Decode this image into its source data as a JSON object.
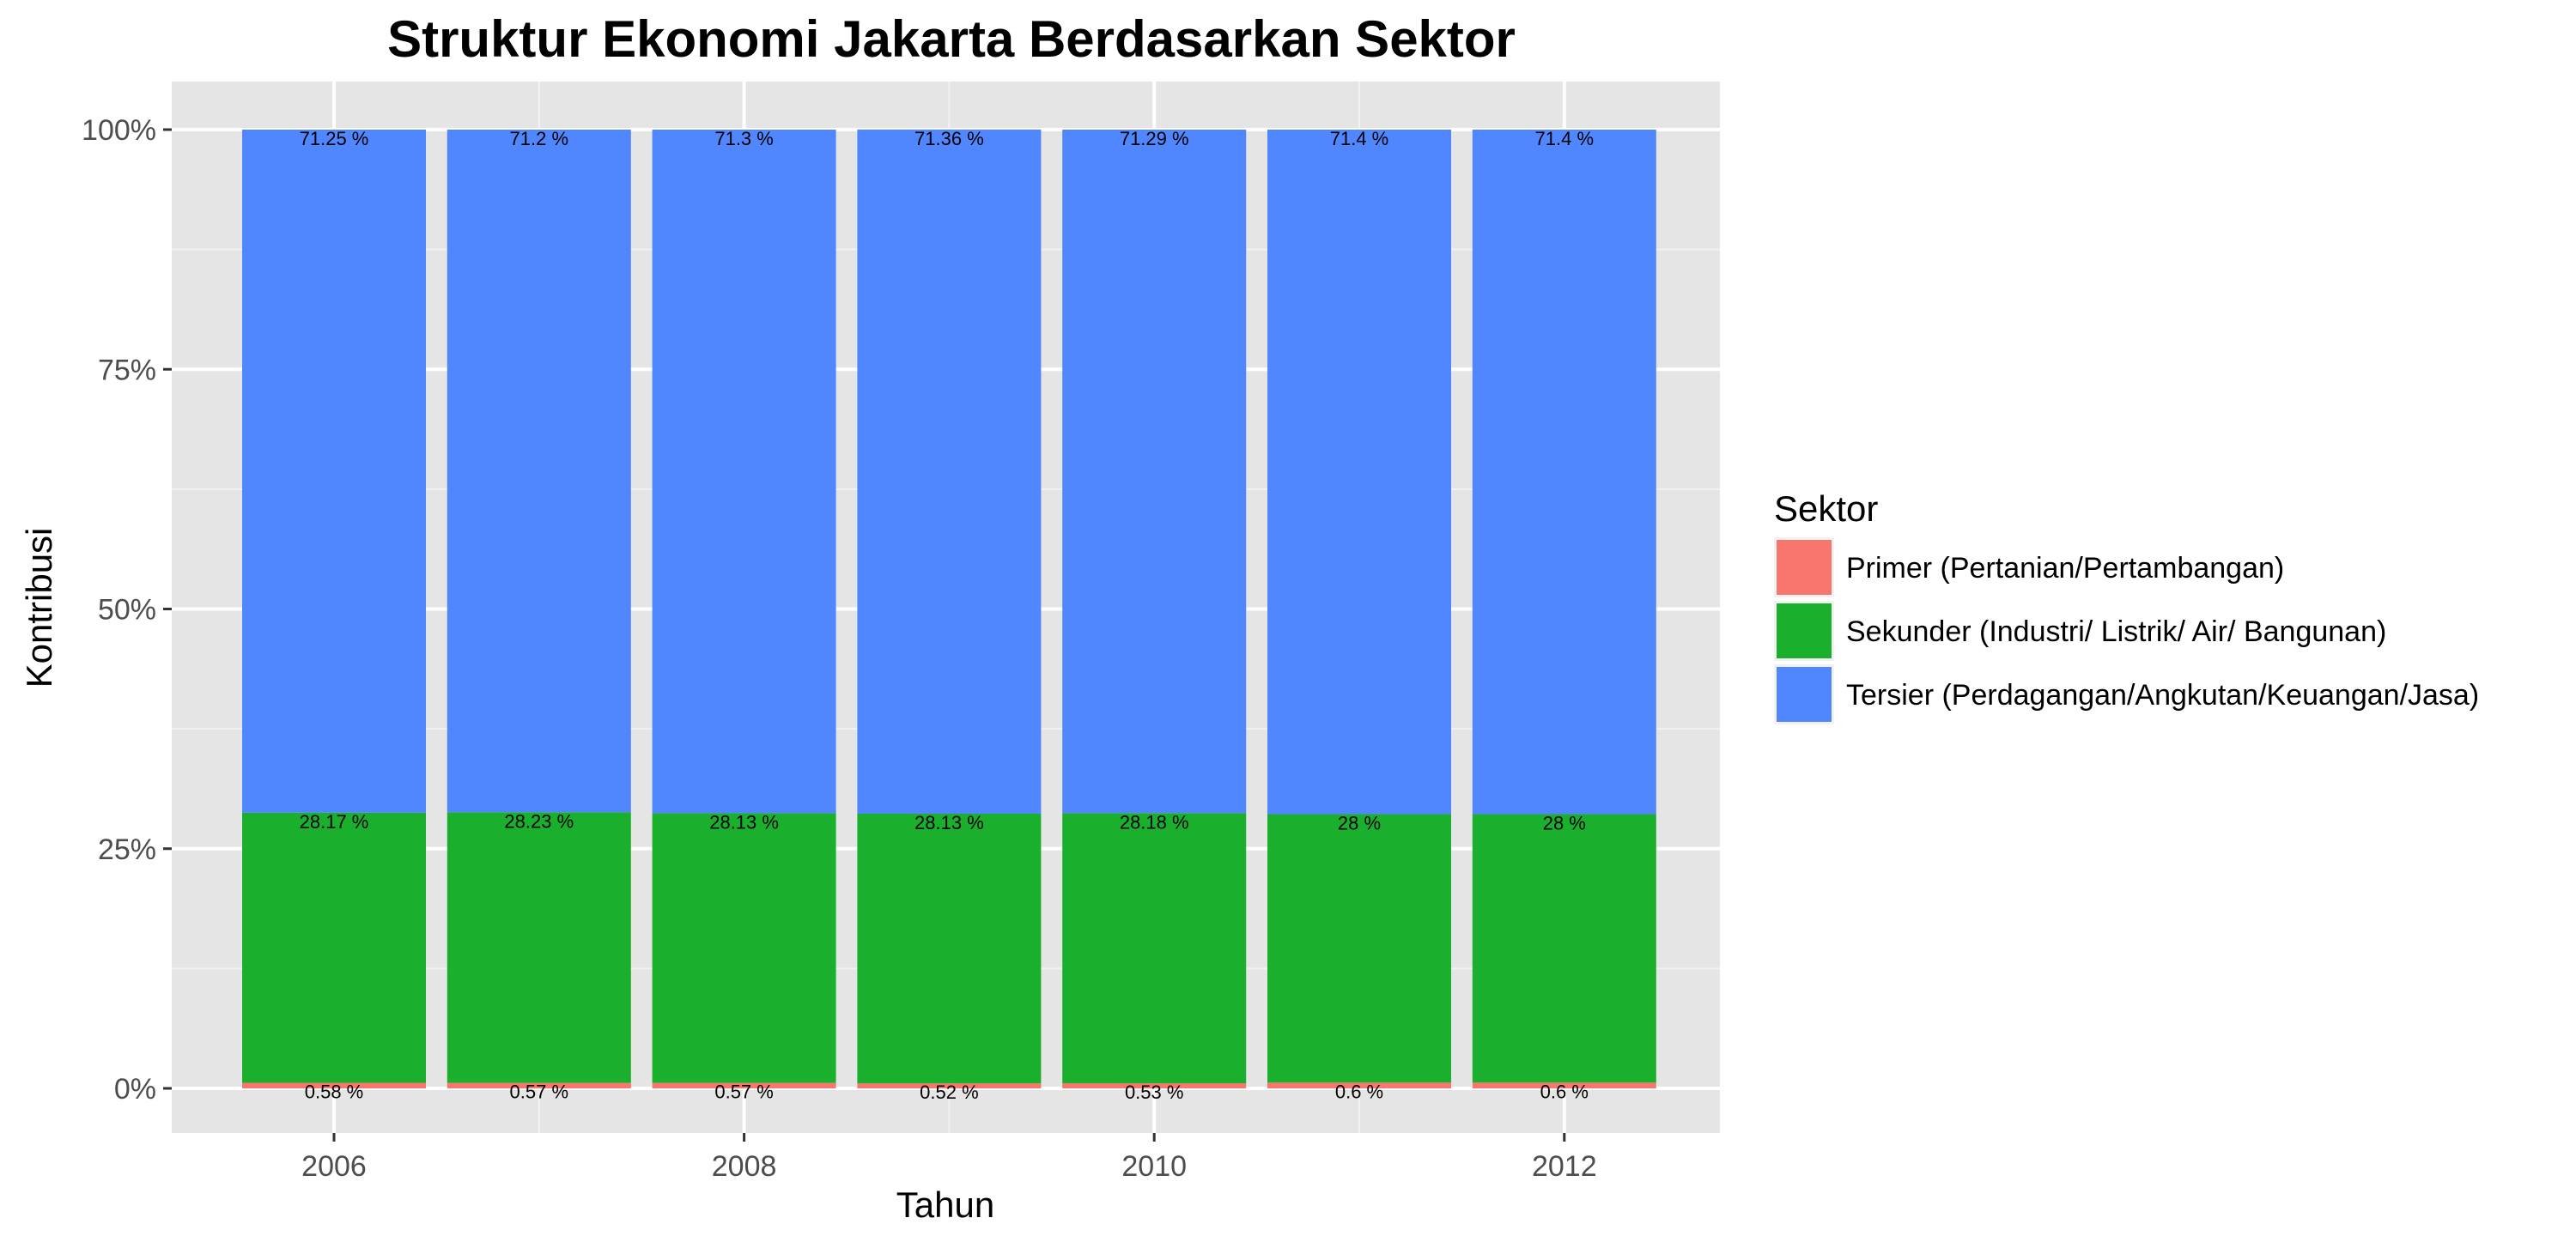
{
  "chart_data": {
    "type": "bar",
    "stacked": true,
    "title": "Struktur Ekonomi Jakarta Berdasarkan Sektor",
    "xlabel": "Tahun",
    "ylabel": "Kontribusi",
    "x": [
      2006,
      2007,
      2008,
      2009,
      2010,
      2011,
      2012
    ],
    "x_tick_labels": [
      "2006",
      "2008",
      "2010",
      "2012"
    ],
    "y_tick_labels": [
      "0%",
      "25%",
      "50%",
      "75%",
      "100%"
    ],
    "ylim": [
      0,
      100
    ],
    "grid": true,
    "legend_position": "right",
    "legend_title": "Sektor",
    "series": [
      {
        "name": "Primer (Pertanian/Pertambangan)",
        "color": "#F8766D",
        "values": [
          0.58,
          0.57,
          0.57,
          0.52,
          0.53,
          0.6,
          0.6
        ],
        "labels": [
          "0.58 %",
          "0.57 %",
          "0.57 %",
          "0.52 %",
          "0.53 %",
          "0.6 %",
          "0.6 %"
        ]
      },
      {
        "name": "Sekunder (Industri/ Listrik/ Air/ Bangunan)",
        "color": "#1AB02E",
        "values": [
          28.17,
          28.23,
          28.13,
          28.13,
          28.18,
          28,
          28
        ],
        "labels": [
          "28.17 %",
          "28.23 %",
          "28.13 %",
          "28.13 %",
          "28.18 %",
          "28 %",
          "28 %"
        ]
      },
      {
        "name": "Tersier (Perdagangan/Angkutan/Keuangan/Jasa)",
        "color": "#5087FF",
        "values": [
          71.25,
          71.2,
          71.3,
          71.36,
          71.29,
          71.4,
          71.4
        ],
        "labels": [
          "71.25 %",
          "71.2 %",
          "71.3 %",
          "71.36 %",
          "71.29 %",
          "71.4 %",
          "71.4 %"
        ]
      }
    ]
  }
}
